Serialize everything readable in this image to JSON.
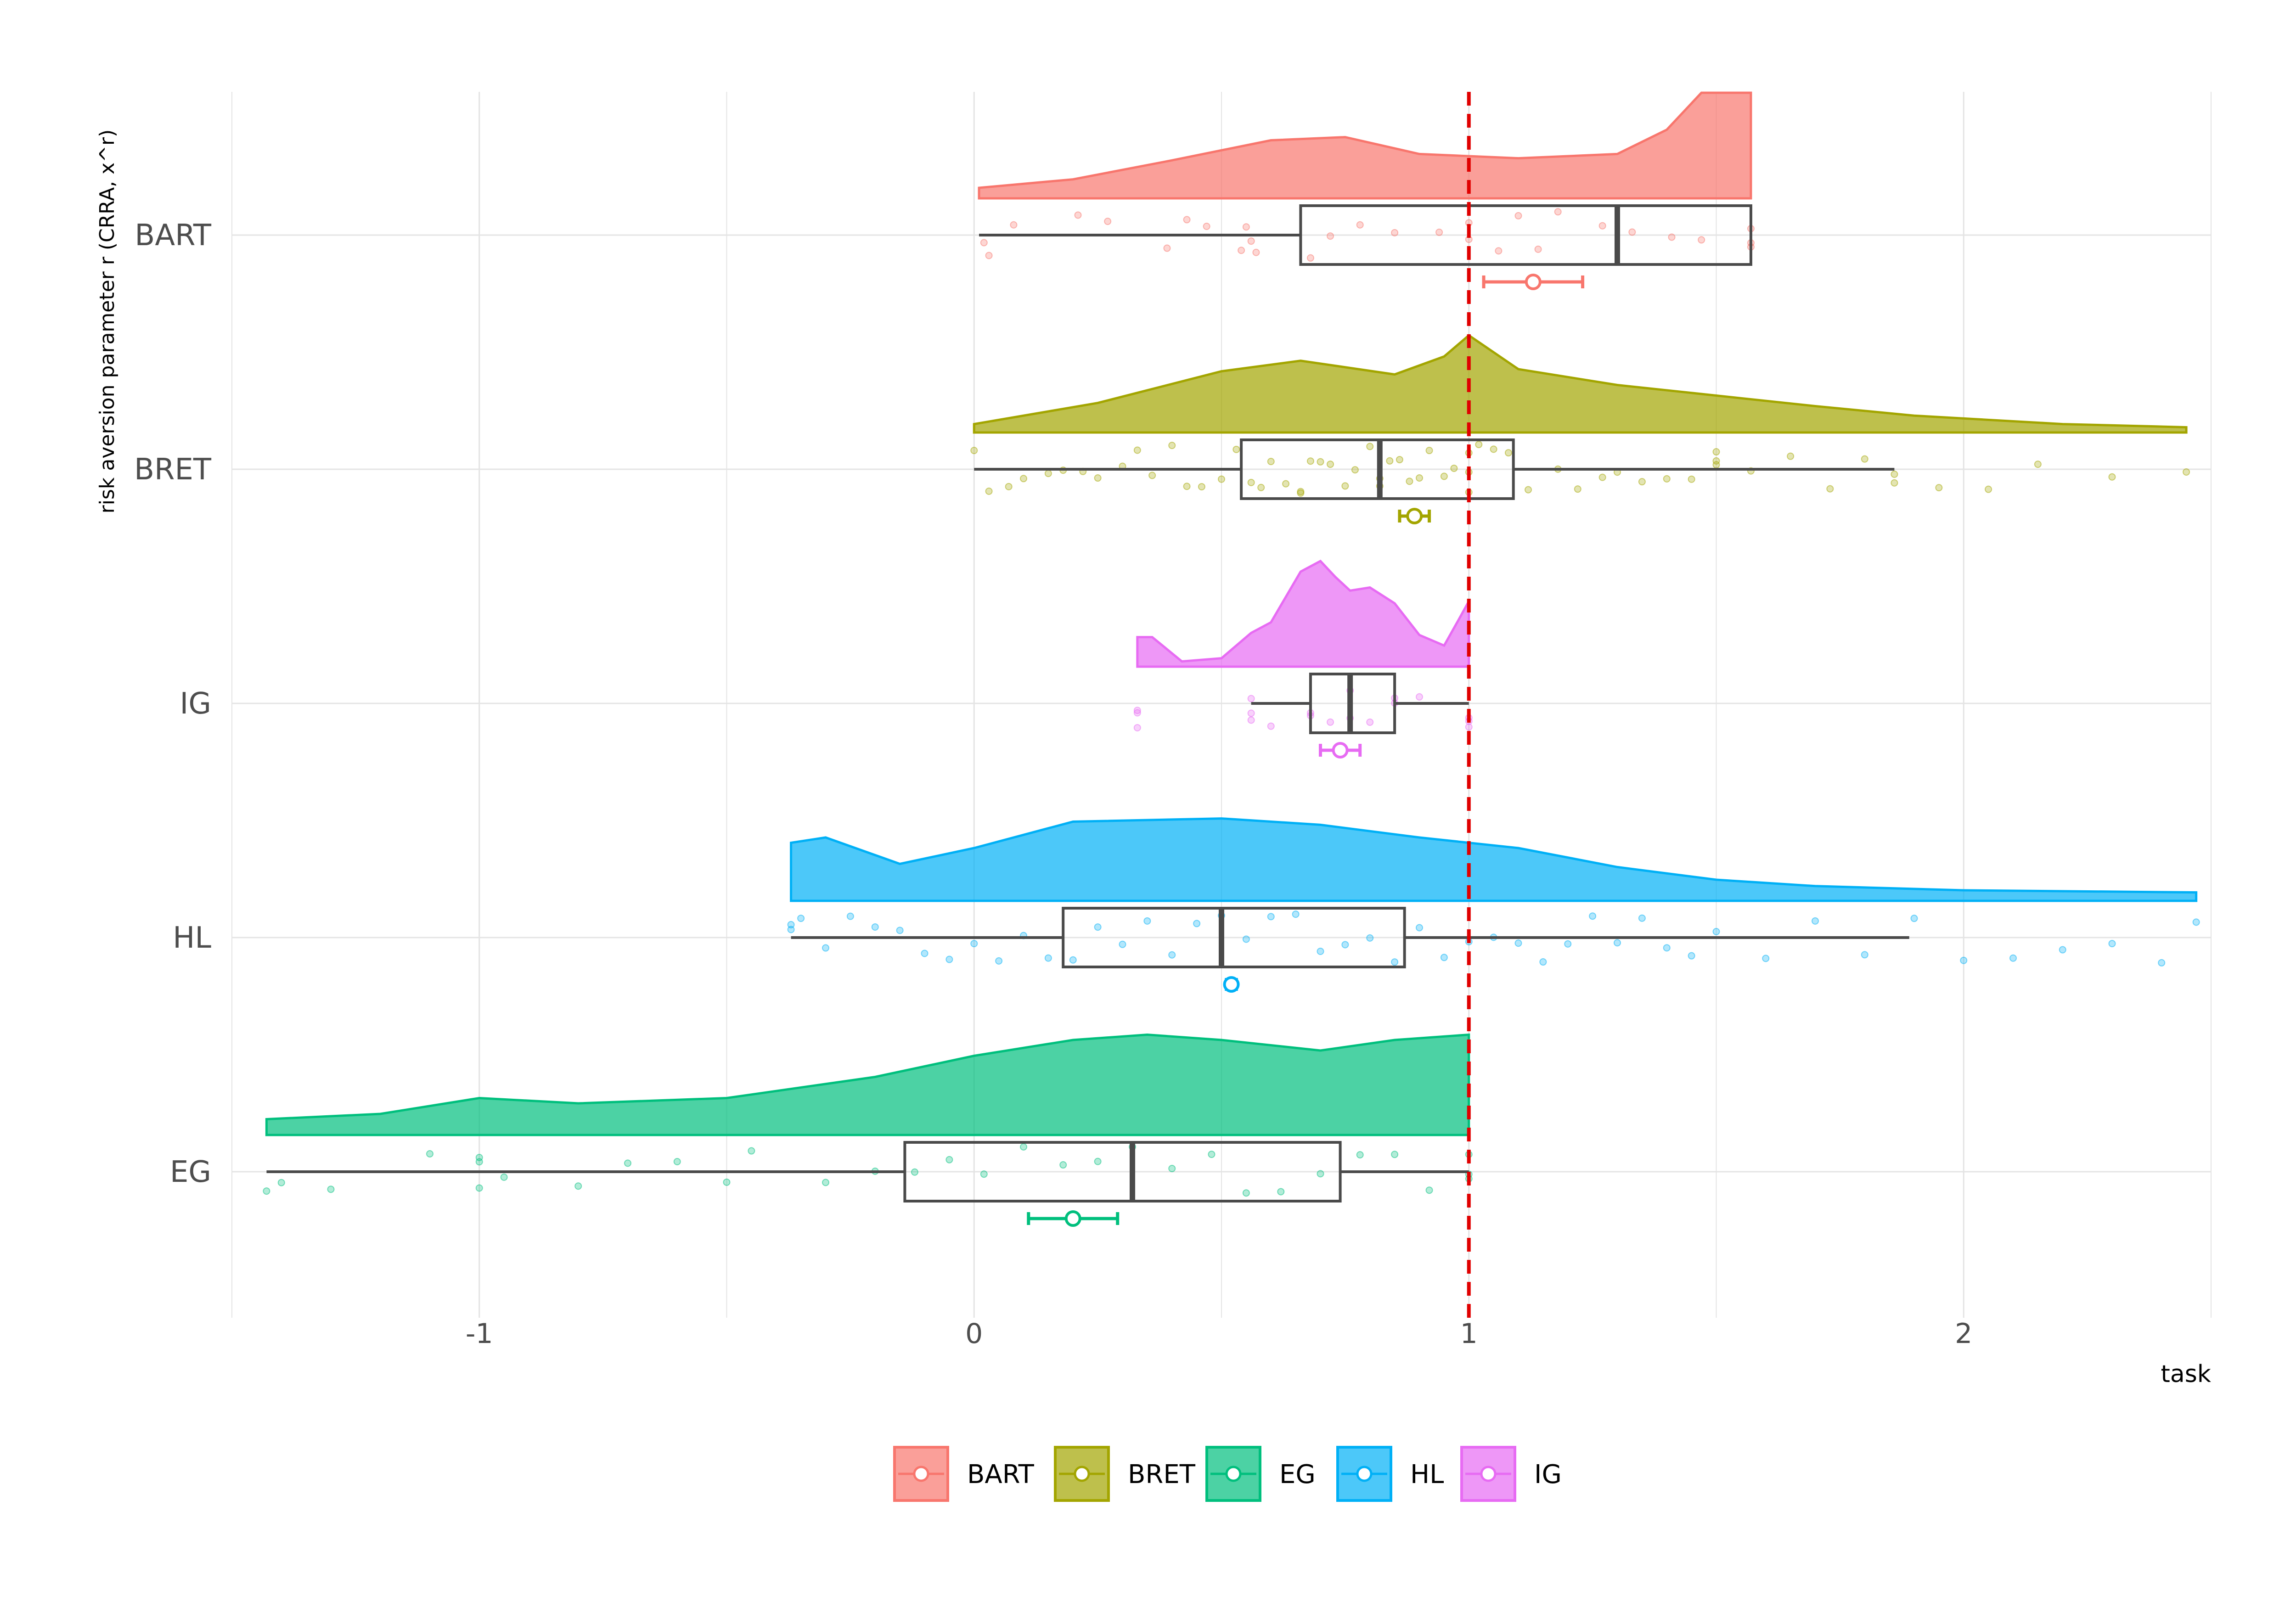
{
  "chart_data": {
    "type": "raincloud",
    "xlabel": "task",
    "ylabel": "risk aversion parameter r (CRRA, x^r)",
    "xlim": [
      -1.5,
      2.5
    ],
    "x_ticks": [
      -1,
      0,
      1,
      2
    ],
    "x_tick_labels": [
      "-1",
      "0",
      "1",
      "2"
    ],
    "reference_line": {
      "x": 1,
      "color": "#e00000",
      "style": "dashed"
    },
    "grid": true,
    "legend_position": "bottom",
    "categories": [
      "BART",
      "BRET",
      "IG",
      "HL",
      "EG"
    ],
    "series": [
      {
        "name": "BART",
        "color": "#F8766D",
        "box": {
          "whisker_low": 0.01,
          "q1": 0.66,
          "median": 1.3,
          "q3": 1.57,
          "whisker_high": 1.57
        },
        "mean": 1.13,
        "ci": [
          1.03,
          1.23
        ],
        "density": {
          "x": [
            0.01,
            0.2,
            0.4,
            0.6,
            0.75,
            0.9,
            1.1,
            1.3,
            1.4,
            1.47,
            1.57
          ],
          "y": [
            0.1,
            0.18,
            0.36,
            0.55,
            0.58,
            0.42,
            0.38,
            0.42,
            0.65,
            1.0,
            1.0
          ]
        },
        "points": [
          0.02,
          0.03,
          0.08,
          0.21,
          0.27,
          0.39,
          0.43,
          0.47,
          0.54,
          0.55,
          0.56,
          0.57,
          0.68,
          0.72,
          0.78,
          0.85,
          0.94,
          1.0,
          1.0,
          1.06,
          1.1,
          1.14,
          1.18,
          1.27,
          1.33,
          1.41,
          1.47,
          1.57,
          1.57,
          1.57
        ]
      },
      {
        "name": "BRET",
        "color": "#A3A500",
        "box": {
          "whisker_low": 0.0,
          "q1": 0.54,
          "median": 0.82,
          "q3": 1.09,
          "whisker_high": 1.86
        },
        "mean": 0.89,
        "ci": [
          0.86,
          0.92
        ],
        "density": {
          "x": [
            0.0,
            0.25,
            0.5,
            0.66,
            0.85,
            0.95,
            1.0,
            1.1,
            1.3,
            1.5,
            1.7,
            1.9,
            2.2,
            2.45
          ],
          "y": [
            0.08,
            0.28,
            0.58,
            0.68,
            0.55,
            0.72,
            0.92,
            0.6,
            0.45,
            0.35,
            0.25,
            0.16,
            0.08,
            0.05
          ]
        },
        "points": [
          0.0,
          0.03,
          0.07,
          0.1,
          0.15,
          0.18,
          0.22,
          0.25,
          0.3,
          0.33,
          0.36,
          0.4,
          0.43,
          0.46,
          0.5,
          0.53,
          0.56,
          0.58,
          0.6,
          0.63,
          0.66,
          0.66,
          0.68,
          0.7,
          0.72,
          0.75,
          0.77,
          0.8,
          0.82,
          0.82,
          0.84,
          0.86,
          0.88,
          0.9,
          0.92,
          0.95,
          0.97,
          1.0,
          1.0,
          1.0,
          1.02,
          1.05,
          1.08,
          1.12,
          1.18,
          1.22,
          1.27,
          1.3,
          1.35,
          1.4,
          1.45,
          1.5,
          1.5,
          1.5,
          1.57,
          1.65,
          1.73,
          1.8,
          1.86,
          1.86,
          1.95,
          2.05,
          2.15,
          2.3,
          2.45
        ]
      },
      {
        "name": "IG",
        "color": "#E76BF3",
        "box": {
          "whisker_low": 0.56,
          "q1": 0.68,
          "median": 0.76,
          "q3": 0.85,
          "whisker_high": 1.0
        },
        "mean": 0.74,
        "ci": [
          0.7,
          0.78
        ],
        "density": {
          "x": [
            0.33,
            0.36,
            0.42,
            0.5,
            0.56,
            0.6,
            0.66,
            0.7,
            0.73,
            0.76,
            0.8,
            0.85,
            0.9,
            0.95,
            0.98,
            1.0
          ],
          "y": [
            0.28,
            0.28,
            0.05,
            0.08,
            0.32,
            0.42,
            0.9,
            1.0,
            0.85,
            0.72,
            0.75,
            0.6,
            0.3,
            0.2,
            0.45,
            0.62
          ]
        },
        "points": [
          0.33,
          0.33,
          0.33,
          0.56,
          0.56,
          0.56,
          0.6,
          0.68,
          0.68,
          0.72,
          0.76,
          0.76,
          0.8,
          0.85,
          0.85,
          0.9,
          1.0,
          1.0,
          1.0
        ]
      },
      {
        "name": "HL",
        "color": "#00B0F6",
        "box": {
          "whisker_low": -0.37,
          "q1": 0.18,
          "median": 0.5,
          "q3": 0.87,
          "whisker_high": 1.89
        },
        "mean": 0.52,
        "ci": [
          0.51,
          0.53
        ],
        "density": {
          "x": [
            -0.37,
            -0.3,
            -0.15,
            0.0,
            0.2,
            0.5,
            0.7,
            0.9,
            1.1,
            1.3,
            1.5,
            1.7,
            2.0,
            2.47
          ],
          "y": [
            0.55,
            0.6,
            0.35,
            0.5,
            0.75,
            0.78,
            0.72,
            0.6,
            0.5,
            0.32,
            0.2,
            0.14,
            0.1,
            0.08
          ]
        },
        "points": [
          -0.37,
          -0.37,
          -0.35,
          -0.3,
          -0.25,
          -0.2,
          -0.15,
          -0.1,
          -0.05,
          0.0,
          0.05,
          0.1,
          0.15,
          0.2,
          0.25,
          0.3,
          0.35,
          0.4,
          0.45,
          0.5,
          0.55,
          0.6,
          0.65,
          0.7,
          0.75,
          0.8,
          0.85,
          0.9,
          0.95,
          1.0,
          1.05,
          1.1,
          1.15,
          1.2,
          1.25,
          1.3,
          1.35,
          1.4,
          1.45,
          1.5,
          1.6,
          1.7,
          1.8,
          1.9,
          2.0,
          2.1,
          2.2,
          2.3,
          2.4,
          2.47
        ]
      },
      {
        "name": "EG",
        "color": "#00BF7D",
        "box": {
          "whisker_low": -1.43,
          "q1": -0.14,
          "median": 0.32,
          "q3": 0.74,
          "whisker_high": 1.0
        },
        "mean": 0.2,
        "ci": [
          0.11,
          0.29
        ],
        "density": {
          "x": [
            -1.43,
            -1.2,
            -1.0,
            -0.8,
            -0.5,
            -0.2,
            0.0,
            0.2,
            0.35,
            0.5,
            0.7,
            0.85,
            1.0
          ],
          "y": [
            0.15,
            0.2,
            0.35,
            0.3,
            0.35,
            0.55,
            0.75,
            0.9,
            0.95,
            0.9,
            0.8,
            0.9,
            0.95
          ]
        },
        "points": [
          -1.43,
          -1.4,
          -1.3,
          -1.1,
          -1.0,
          -1.0,
          -1.0,
          -0.95,
          -0.8,
          -0.7,
          -0.6,
          -0.5,
          -0.45,
          -0.3,
          -0.2,
          -0.12,
          -0.05,
          0.02,
          0.1,
          0.18,
          0.25,
          0.32,
          0.4,
          0.48,
          0.55,
          0.62,
          0.7,
          0.78,
          0.85,
          0.92,
          1.0,
          1.0,
          1.0
        ]
      }
    ],
    "legend": [
      "BART",
      "BRET",
      "EG",
      "HL",
      "IG"
    ]
  }
}
